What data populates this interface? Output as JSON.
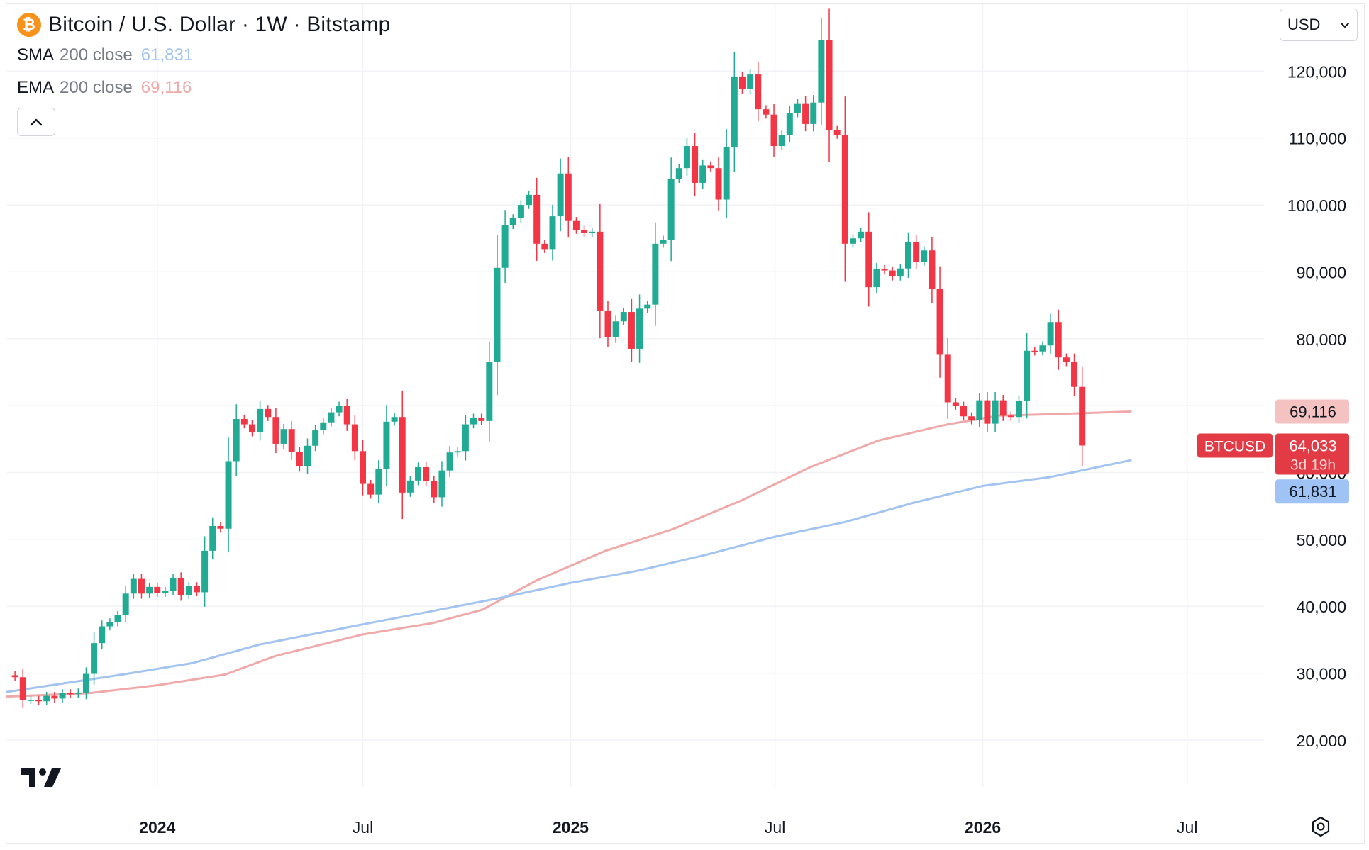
{
  "header": {
    "title": "Bitcoin / U.S. Dollar · 1W · Bitstamp",
    "logo_glyph": "₿",
    "currency": "USD"
  },
  "indicators": [
    {
      "name": "SMA",
      "params": "200 close",
      "value": "61,831",
      "color": "#a3c4f0"
    },
    {
      "name": "EMA",
      "params": "200 close",
      "value": "69,116",
      "color": "#efa9a9"
    }
  ],
  "price_labels": {
    "ema": "69,116",
    "symbol": "BTCUSD",
    "last": "64,033",
    "countdown": "3d 19h",
    "sma": "61,831"
  },
  "colors": {
    "up": "#22ab94",
    "down": "#f23645",
    "sma": "#a3c4f0",
    "ema": "#efa9a9"
  },
  "chart_data": {
    "type": "candlestick",
    "interval": "1W",
    "x_axis_labels": [
      {
        "label": "2024",
        "date": "2024-01-01"
      },
      {
        "label": "Jul",
        "date": "2024-07-01"
      },
      {
        "label": "2025",
        "date": "2025-01-01"
      },
      {
        "label": "Jul",
        "date": "2025-07-01"
      },
      {
        "label": "2026",
        "date": "2026-01-01"
      },
      {
        "label": "Jul",
        "date": "2026-07-01"
      }
    ],
    "x_range": [
      "2023-08-21",
      "2026-09-07"
    ],
    "y_ticks": [
      "20,000",
      "30,000",
      "40,000",
      "50,000",
      "60,000",
      "70,000",
      "80,000",
      "90,000",
      "100,000",
      "110,000",
      "120,000"
    ],
    "y_range": [
      13000,
      130000
    ],
    "series": [
      {
        "name": "BTCUSD",
        "start_week": "2023-08-28",
        "closes": [
          29400,
          26000,
          26000,
          25800,
          26600,
          26200,
          27000,
          26900,
          27100,
          29900,
          34500,
          37000,
          37600,
          38700,
          41900,
          44100,
          41900,
          42900,
          42000,
          42300,
          44200,
          41700,
          43000,
          42100,
          48300,
          52000,
          51600,
          61700,
          68000,
          67200,
          66000,
          69500,
          68300,
          64300,
          66500,
          63100,
          60900,
          64000,
          66300,
          67500,
          69000,
          70000,
          67200,
          63200,
          58300,
          56700,
          60500,
          67600,
          68300,
          57000,
          58800,
          60800,
          58700,
          56300,
          60300,
          63000,
          63200,
          67200,
          68200,
          67700,
          76500,
          90600,
          97000,
          98000,
          100000,
          101500,
          94200,
          93400,
          98300,
          104700,
          97600,
          96300,
          95800,
          96000,
          84200,
          80200,
          82600,
          84000,
          78500,
          84500,
          85100,
          94200,
          94800,
          103900,
          105500,
          108800,
          103300,
          105900,
          105500,
          100800,
          108600,
          119200,
          117300,
          119500,
          114300,
          113500,
          108800,
          110500,
          113700,
          115200,
          112100,
          115300,
          124700,
          111200,
          110500,
          94200,
          95000,
          96000,
          87700,
          90400,
          90200,
          89300,
          90500,
          94500,
          91500,
          93200,
          87400,
          77600,
          70500,
          70000,
          68400,
          67800,
          70800,
          67300,
          70800,
          68500,
          68300,
          70700,
          78200,
          78100,
          79000,
          82500,
          77200,
          76500,
          72800,
          64033
        ]
      },
      {
        "name": "SMA 200 close",
        "points": [
          [
            "2023-08-21",
            27200
          ],
          [
            "2023-12-01",
            29800
          ],
          [
            "2024-02-01",
            31500
          ],
          [
            "2024-04-01",
            34300
          ],
          [
            "2024-07-01",
            37300
          ],
          [
            "2024-09-01",
            39300
          ],
          [
            "2024-11-01",
            41300
          ],
          [
            "2025-01-01",
            43500
          ],
          [
            "2025-03-01",
            45300
          ],
          [
            "2025-05-01",
            47700
          ],
          [
            "2025-07-01",
            50400
          ],
          [
            "2025-09-01",
            52600
          ],
          [
            "2025-11-01",
            55500
          ],
          [
            "2026-01-01",
            58000
          ],
          [
            "2026-03-01",
            59300
          ],
          [
            "2026-05-12",
            61831
          ]
        ]
      },
      {
        "name": "EMA 200 close",
        "points": [
          [
            "2023-08-21",
            26500
          ],
          [
            "2023-11-01",
            27000
          ],
          [
            "2024-01-01",
            28200
          ],
          [
            "2024-03-01",
            29800
          ],
          [
            "2024-04-15",
            32600
          ],
          [
            "2024-07-01",
            35800
          ],
          [
            "2024-09-01",
            37500
          ],
          [
            "2024-10-15",
            39500
          ],
          [
            "2024-12-01",
            43800
          ],
          [
            "2025-02-01",
            48300
          ],
          [
            "2025-04-01",
            51500
          ],
          [
            "2025-06-01",
            55800
          ],
          [
            "2025-08-01",
            60800
          ],
          [
            "2025-10-01",
            64800
          ],
          [
            "2025-12-01",
            67200
          ],
          [
            "2026-01-15",
            68500
          ],
          [
            "2026-03-01",
            68700
          ],
          [
            "2026-05-12",
            69116
          ]
        ]
      }
    ]
  }
}
